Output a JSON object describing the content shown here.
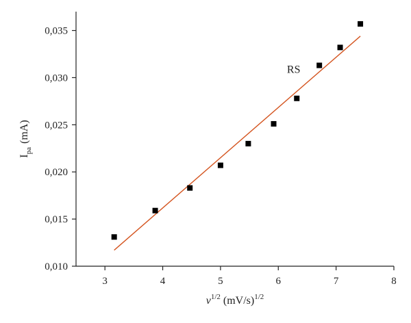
{
  "chart_data": {
    "type": "scatter",
    "xlabel": {
      "symbol": "ν",
      "exp": "1/2",
      "units": "(mV/s)",
      "units_exp": "1/2"
    },
    "ylabel": {
      "symbol": "I",
      "sub": "pa",
      "units": "(mA)"
    },
    "xlim": [
      2.5,
      8
    ],
    "ylim": [
      0.01,
      0.037
    ],
    "xticks": [
      3,
      4,
      5,
      6,
      7,
      8
    ],
    "yticks": [
      0.01,
      0.015,
      0.02,
      0.025,
      0.03,
      0.035
    ],
    "xtick_labels": [
      "3",
      "4",
      "5",
      "6",
      "7",
      "8"
    ],
    "ytick_labels": [
      "0,010",
      "0,015",
      "0,020",
      "0,025",
      "0,030",
      "0,035"
    ],
    "series": [
      {
        "marker": "square",
        "color": "#000000",
        "x": [
          3.16,
          3.87,
          4.47,
          5.0,
          5.48,
          5.92,
          6.32,
          6.71,
          7.07,
          7.42
        ],
        "y": [
          0.0131,
          0.0159,
          0.0183,
          0.0207,
          0.023,
          0.0251,
          0.0278,
          0.0313,
          0.0332,
          0.0357
        ]
      }
    ],
    "fit_line": {
      "color": "#d4541f",
      "x": [
        3.16,
        7.42
      ],
      "y": [
        0.0117,
        0.0344
      ]
    },
    "annotation": {
      "text": "RS",
      "x": 6.15,
      "y": 0.0305
    },
    "grid": false
  }
}
